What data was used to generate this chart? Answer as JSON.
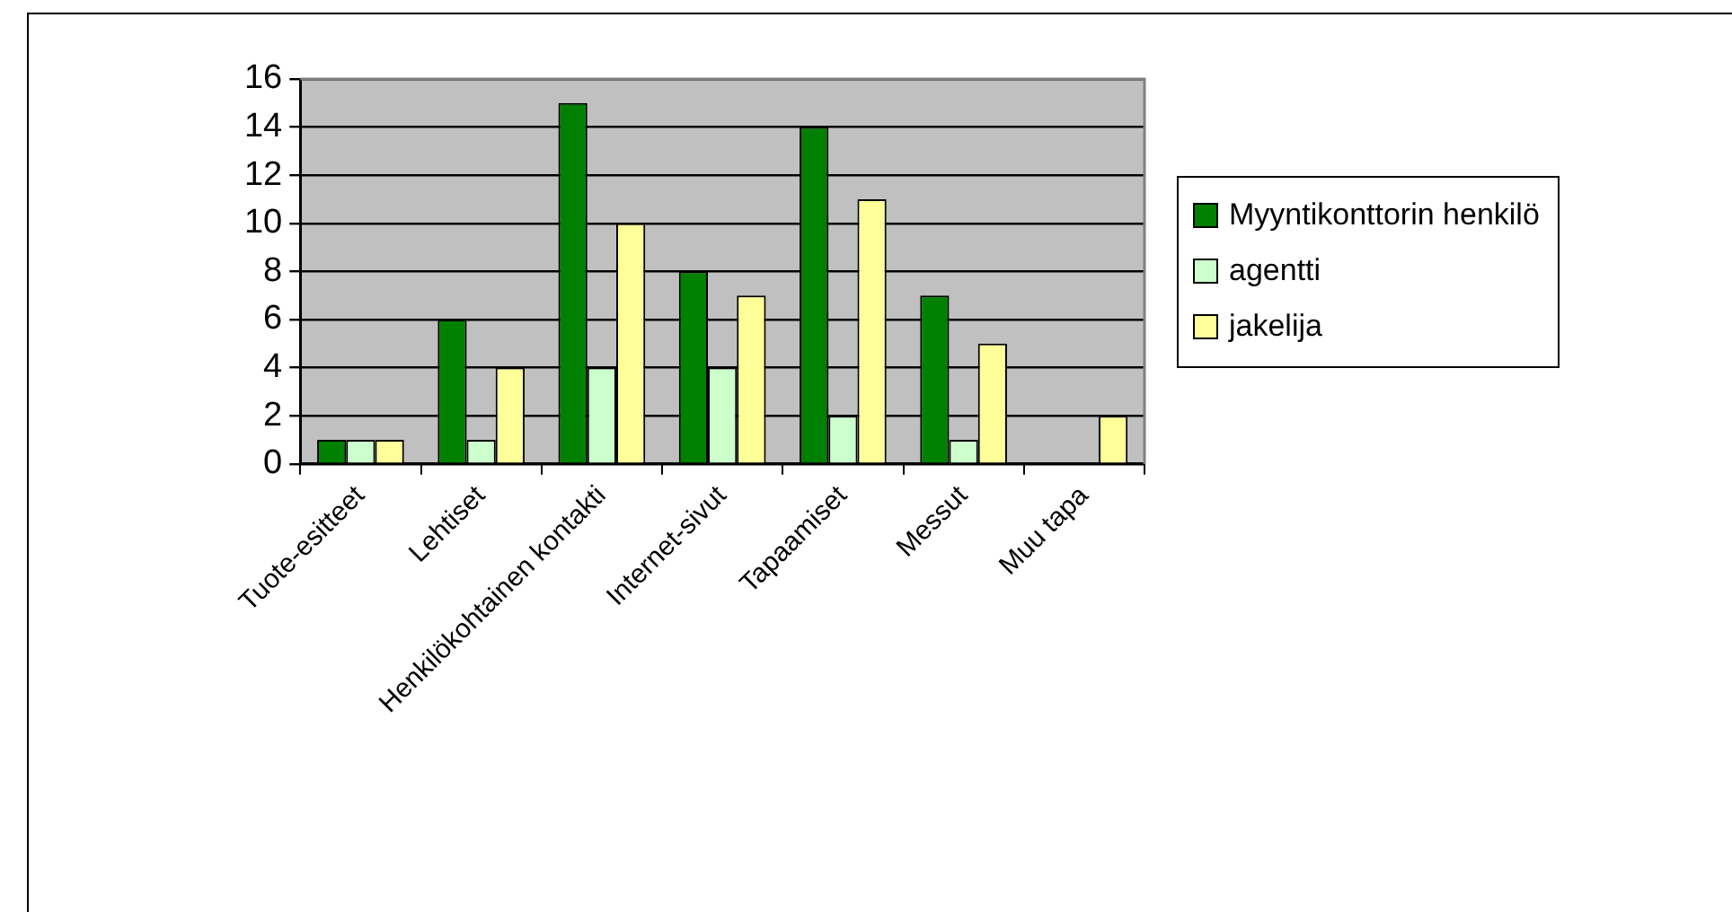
{
  "chart_data": {
    "type": "bar",
    "categories": [
      "Tuote-esitteet",
      "Lehtiset",
      "Henkilökohtainen kontakti",
      "Internet-sivut",
      "Tapaamiset",
      "Messut",
      "Muu tapa"
    ],
    "series": [
      {
        "name": "Myyntikonttorin henkilö",
        "color": "#008000",
        "values": [
          1,
          6,
          15,
          8,
          14,
          7,
          0
        ]
      },
      {
        "name": "agentti",
        "color": "#ccffcc",
        "values": [
          1,
          1,
          4,
          4,
          2,
          1,
          0
        ]
      },
      {
        "name": "jakelija",
        "color": "#ffff99",
        "values": [
          1,
          4,
          10,
          7,
          11,
          5,
          2
        ]
      }
    ],
    "ylim": [
      0,
      16
    ],
    "yticks": [
      0,
      2,
      4,
      6,
      8,
      10,
      12,
      14,
      16
    ],
    "grid": "y",
    "legend": "right"
  }
}
